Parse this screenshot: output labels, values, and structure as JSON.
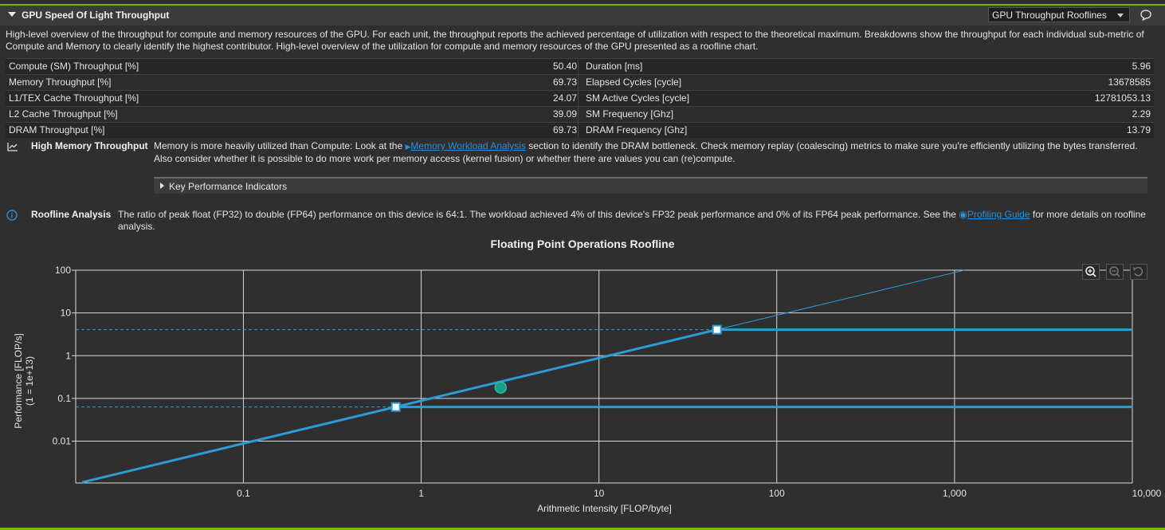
{
  "header": {
    "title": "GPU Speed Of Light Throughput",
    "dropdown_value": "GPU Throughput Rooflines"
  },
  "description": "High-level overview of the throughput for compute and memory resources of the GPU. For each unit, the throughput reports the achieved percentage of utilization with respect to the theoretical maximum. Breakdowns show the throughput for each individual sub-metric of Compute and Memory to clearly identify the highest contributor. High-level overview of the utilization for compute and memory resources of the GPU presented as a roofline chart.",
  "metrics": [
    {
      "l1": "Compute (SM) Throughput [%]",
      "v1": "50.40",
      "l2": "Duration [ms]",
      "v2": "5.96"
    },
    {
      "l1": "Memory Throughput [%]",
      "v1": "69.73",
      "l2": "Elapsed Cycles [cycle]",
      "v2": "13678585"
    },
    {
      "l1": "L1/TEX Cache Throughput [%]",
      "v1": "24.07",
      "l2": "SM Active Cycles [cycle]",
      "v2": "12781053.13"
    },
    {
      "l1": "L2 Cache Throughput [%]",
      "v1": "39.09",
      "l2": "SM Frequency [Ghz]",
      "v2": "2.29"
    },
    {
      "l1": "DRAM Throughput [%]",
      "v1": "69.73",
      "l2": "DRAM Frequency [Ghz]",
      "v2": "13.79"
    }
  ],
  "memory_note": {
    "label": "High Memory Throughput",
    "text_before": "Memory is more heavily utilized than Compute: Look at the",
    "link": "Memory Workload Analysis",
    "text_after": "section to identify the DRAM bottleneck. Check memory replay (coalescing) metrics to make sure you're efficiently utilizing the bytes transferred.",
    "text_line2": "Also consider whether it is possible to do more work per memory access (kernel fusion) or whether there are values you can (re)compute."
  },
  "kpi_label": "Key Performance Indicators",
  "roofline_note": {
    "label": "Roofline Analysis",
    "text_before": "The ratio of peak float (FP32) to double (FP64) performance on this device is 64:1. The workload achieved 4% of this device's FP32 peak performance and 0% of its FP64 peak performance. See the",
    "link": "Profiling Guide",
    "text_after": "for more details on roofline analysis."
  },
  "chart_data": {
    "type": "scatter",
    "title": "Floating Point Operations Roofline",
    "xlabel": "Arithmetic Intensity [FLOP/byte]",
    "ylabel": "Performance [FLOP/s]",
    "ylabel_sub": "(1 = 1e+13)",
    "xscale": "log",
    "yscale": "log",
    "xlim": [
      0.0114,
      10000
    ],
    "ylim": [
      0.00105,
      100
    ],
    "x_ticks": [
      "0.1",
      "1",
      "10",
      "100",
      "1,000",
      "10,000"
    ],
    "x_tick_values": [
      0.1,
      1,
      10,
      100,
      1000,
      10000
    ],
    "y_ticks": [
      "0.01",
      "0.1",
      "1",
      "10",
      "100"
    ],
    "y_tick_values": [
      0.01,
      0.1,
      1,
      10,
      100
    ],
    "grid": true,
    "memory_roof": {
      "slope_bw": 0.088
    },
    "fp32_peak": 4.06,
    "fp64_peak": 0.063,
    "ridge_points": [
      {
        "name": "FP32",
        "x": 46.1,
        "y": 4.06
      },
      {
        "name": "FP64",
        "x": 0.72,
        "y": 0.063
      }
    ],
    "achieved": {
      "x": 2.8,
      "y": 0.18
    },
    "colors": {
      "roof": "#2e9bd6",
      "achieved": "#1a9e8a",
      "grid": "#d8d8d8"
    }
  }
}
